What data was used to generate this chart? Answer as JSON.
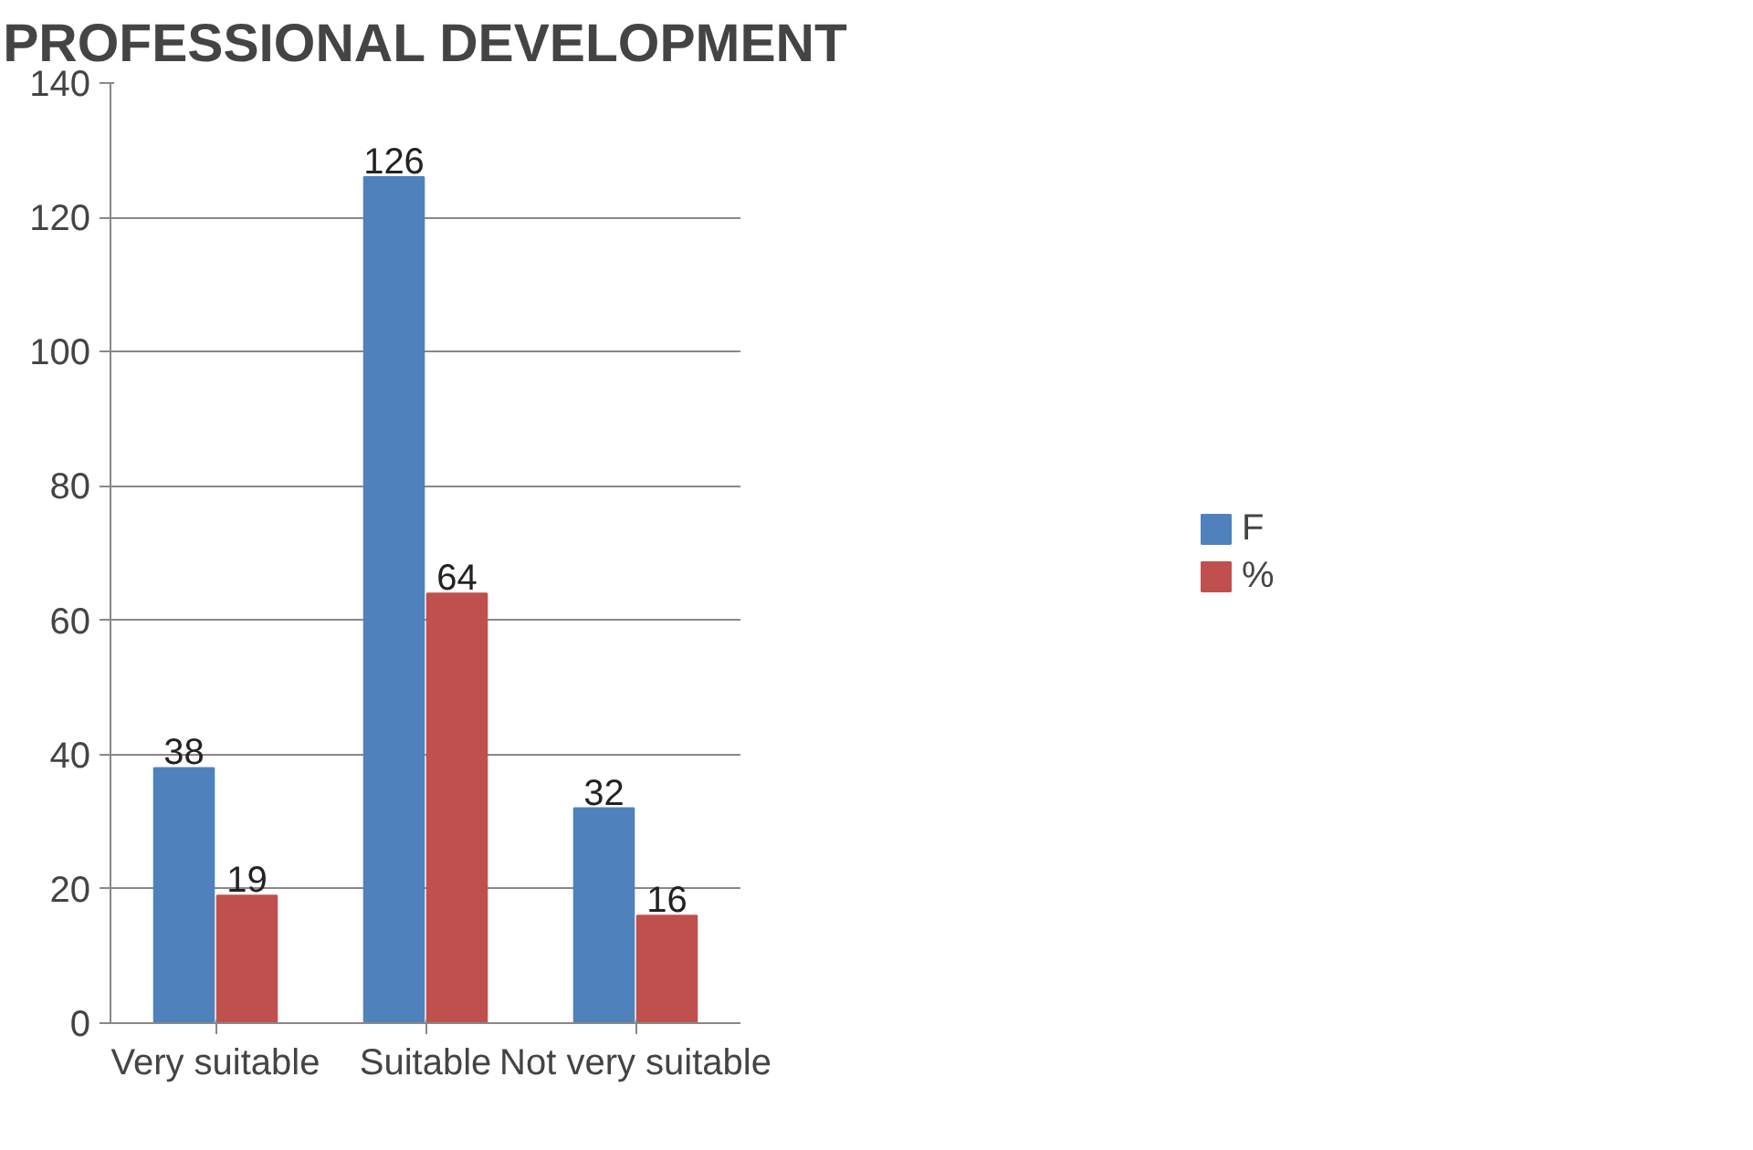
{
  "chart_data": {
    "type": "bar",
    "title": "PROFESSIONAL DEVELOPMENT",
    "categories": [
      "Very suitable",
      "Suitable",
      "Not very suitable"
    ],
    "series": [
      {
        "name": "F",
        "color": "#4f81bd",
        "values": [
          38,
          126,
          32
        ]
      },
      {
        "name": "%",
        "color": "#c0504d",
        "values": [
          19,
          64,
          16
        ]
      }
    ],
    "ylim": [
      0,
      140
    ],
    "yticks": [
      0,
      20,
      40,
      60,
      80,
      100,
      120,
      140
    ],
    "grid": "y",
    "legend": "right",
    "data_labels": true
  }
}
